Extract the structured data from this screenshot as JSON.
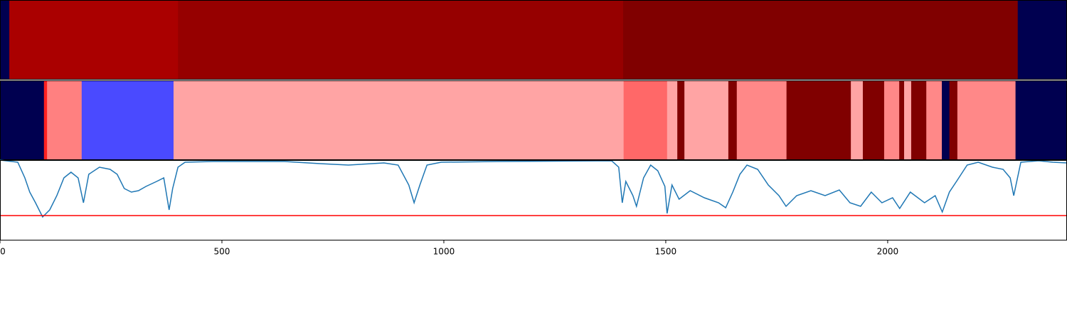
{
  "chart_data": [
    {
      "type": "bands",
      "xlim": [
        0,
        2404
      ],
      "segments": [
        {
          "start": 0,
          "end": 21,
          "color": "#000050"
        },
        {
          "start": 21,
          "end": 401,
          "color": "#aa0000"
        },
        {
          "start": 401,
          "end": 1404,
          "color": "#960000"
        },
        {
          "start": 1404,
          "end": 2293,
          "color": "#800000"
        },
        {
          "start": 2293,
          "end": 2404,
          "color": "#000050"
        }
      ]
    },
    {
      "type": "bands",
      "xlim": [
        0,
        2404
      ],
      "segments": [
        {
          "start": 0,
          "end": 99,
          "color": "#000050"
        },
        {
          "start": 99,
          "end": 106,
          "color": "#ff2020"
        },
        {
          "start": 106,
          "end": 184,
          "color": "#ff8080"
        },
        {
          "start": 184,
          "end": 391,
          "color": "#4a4aff"
        },
        {
          "start": 391,
          "end": 1405,
          "color": "#ffa4a4"
        },
        {
          "start": 1405,
          "end": 1503,
          "color": "#ff6868"
        },
        {
          "start": 1503,
          "end": 1526,
          "color": "#ffa4a4"
        },
        {
          "start": 1526,
          "end": 1542,
          "color": "#800000"
        },
        {
          "start": 1542,
          "end": 1641,
          "color": "#ffa4a4"
        },
        {
          "start": 1641,
          "end": 1660,
          "color": "#800000"
        },
        {
          "start": 1660,
          "end": 1772,
          "color": "#ff8888"
        },
        {
          "start": 1772,
          "end": 1917,
          "color": "#800000"
        },
        {
          "start": 1917,
          "end": 1944,
          "color": "#ffa4a4"
        },
        {
          "start": 1944,
          "end": 1992,
          "color": "#800000"
        },
        {
          "start": 1992,
          "end": 2026,
          "color": "#ff8888"
        },
        {
          "start": 2026,
          "end": 2037,
          "color": "#800000"
        },
        {
          "start": 2037,
          "end": 2053,
          "color": "#ffa4a4"
        },
        {
          "start": 2053,
          "end": 2087,
          "color": "#800000"
        },
        {
          "start": 2087,
          "end": 2122,
          "color": "#ff8888"
        },
        {
          "start": 2122,
          "end": 2139,
          "color": "#000050"
        },
        {
          "start": 2139,
          "end": 2157,
          "color": "#800000"
        },
        {
          "start": 2157,
          "end": 2288,
          "color": "#ff8888"
        },
        {
          "start": 2288,
          "end": 2404,
          "color": "#000050"
        }
      ]
    },
    {
      "type": "line",
      "xlim": [
        0,
        2404
      ],
      "ylim": [
        0,
        113
      ],
      "color": "#1f77b4",
      "xticks": [
        0,
        500,
        1000,
        1500,
        2000
      ],
      "hline": {
        "value": 35,
        "color": "#ff0000"
      },
      "x": [
        0,
        40,
        56,
        67,
        80,
        96,
        104,
        112,
        128,
        144,
        160,
        176,
        188,
        200,
        224,
        248,
        264,
        280,
        296,
        312,
        329,
        353,
        369,
        381,
        389,
        401,
        417,
        481,
        641,
        721,
        785,
        865,
        897,
        921,
        933,
        946,
        962,
        994,
        1122,
        1378,
        1394,
        1402,
        1410,
        1426,
        1434,
        1450,
        1466,
        1482,
        1498,
        1503,
        1514,
        1530,
        1555,
        1587,
        1619,
        1635,
        1651,
        1667,
        1683,
        1707,
        1731,
        1755,
        1771,
        1795,
        1827,
        1859,
        1891,
        1915,
        1939,
        1963,
        1987,
        2011,
        2027,
        2051,
        2083,
        2107,
        2123,
        2139,
        2155,
        2179,
        2204,
        2236,
        2260,
        2276,
        2284,
        2300,
        2340,
        2372,
        2404
      ],
      "values": [
        113,
        110,
        88,
        68,
        53,
        33,
        38,
        43,
        63,
        88,
        96,
        88,
        53,
        93,
        103,
        100,
        93,
        73,
        68,
        70,
        76,
        83,
        88,
        43,
        73,
        103,
        110,
        111,
        111,
        108,
        106,
        109,
        106,
        78,
        53,
        78,
        106,
        110,
        111,
        112,
        103,
        53,
        83,
        63,
        48,
        88,
        106,
        98,
        76,
        38,
        78,
        58,
        70,
        60,
        53,
        46,
        68,
        93,
        106,
        100,
        78,
        63,
        48,
        63,
        70,
        63,
        71,
        53,
        48,
        68,
        53,
        60,
        45,
        68,
        53,
        63,
        40,
        68,
        83,
        106,
        110,
        103,
        100,
        88,
        63,
        110,
        112,
        110,
        109
      ]
    }
  ]
}
